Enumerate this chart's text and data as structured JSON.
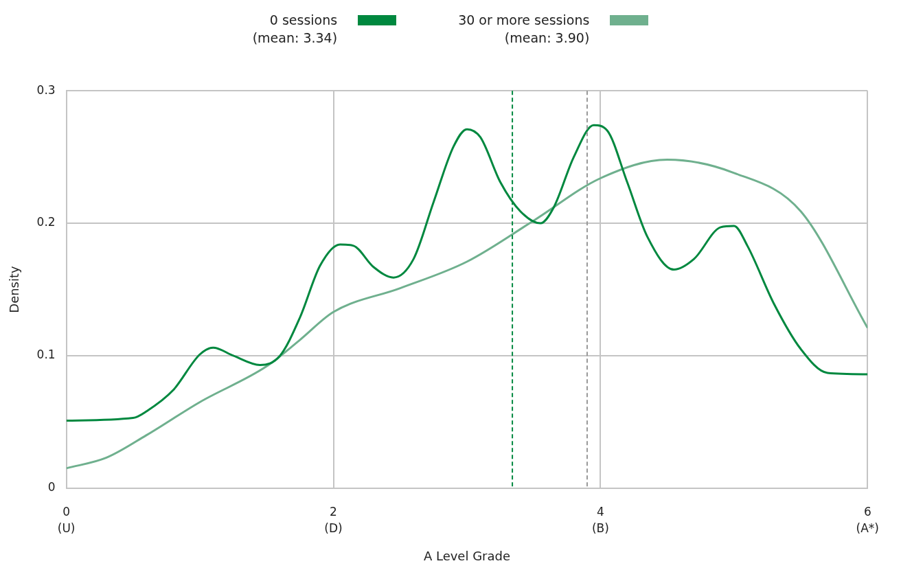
{
  "chart_data": {
    "type": "line",
    "xlabel": "A Level Grade",
    "ylabel": "Density",
    "xlim": [
      0,
      6
    ],
    "ylim": [
      0,
      0.3
    ],
    "xticks": [
      {
        "value": 0,
        "label": "0\n(U)"
      },
      {
        "value": 2,
        "label": "2\n(D)"
      },
      {
        "value": 4,
        "label": "4\n(B)"
      },
      {
        "value": 6,
        "label": "6\n(A*)"
      }
    ],
    "yticks": [
      0,
      0.1,
      0.2,
      0.3
    ],
    "grid": true,
    "legend": "top",
    "marker": "none",
    "line_style": "solid",
    "series": [
      {
        "name": "0 sessions\n(mean: 3.34)",
        "color": "#00883f",
        "x": [
          0,
          0.5,
          0.6,
          0.8,
          1.0,
          1.1,
          1.25,
          1.45,
          1.6,
          1.75,
          1.9,
          2.05,
          2.15,
          2.3,
          2.45,
          2.6,
          2.75,
          2.9,
          3.0,
          3.1,
          3.25,
          3.4,
          3.55,
          3.65,
          3.8,
          3.95,
          4.05,
          4.2,
          4.35,
          4.55,
          4.7,
          4.9,
          5.0,
          5.1,
          5.3,
          5.5,
          5.7,
          6.0
        ],
        "values": [
          0.051,
          0.053,
          0.058,
          0.074,
          0.101,
          0.106,
          0.1,
          0.093,
          0.1,
          0.129,
          0.168,
          0.184,
          0.183,
          0.167,
          0.159,
          0.173,
          0.216,
          0.258,
          0.271,
          0.265,
          0.231,
          0.209,
          0.2,
          0.212,
          0.25,
          0.274,
          0.27,
          0.231,
          0.19,
          0.165,
          0.173,
          0.197,
          0.198,
          0.183,
          0.139,
          0.105,
          0.087,
          0.086
        ]
      },
      {
        "name": "30 or more sessions\n(mean: 3.90)",
        "color": "#6fb08e",
        "x": [
          0,
          0.3,
          0.6,
          1.0,
          1.5,
          1.75,
          2.0,
          2.5,
          3.0,
          3.5,
          4.0,
          4.5,
          5.0,
          5.5,
          6.0
        ],
        "values": [
          0.015,
          0.023,
          0.04,
          0.065,
          0.092,
          0.112,
          0.133,
          0.151,
          0.171,
          0.202,
          0.234,
          0.248,
          0.238,
          0.209,
          0.121
        ]
      }
    ],
    "ref_lines": [
      {
        "axis": "x",
        "value": 3.34,
        "color": "#00883f",
        "line_style": "dashed"
      },
      {
        "axis": "x",
        "value": 3.9,
        "color": "#999999",
        "line_style": "dashed"
      }
    ]
  }
}
